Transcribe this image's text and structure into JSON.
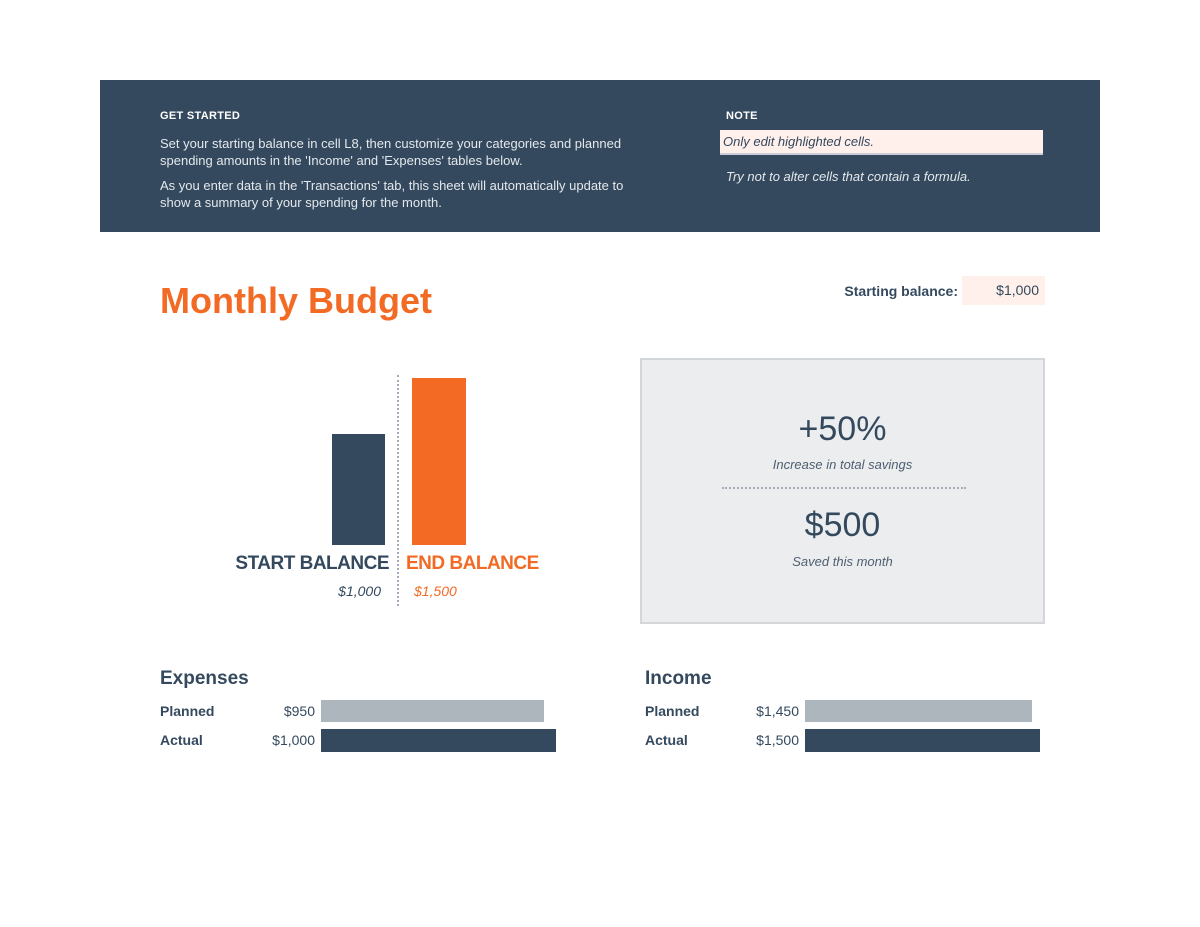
{
  "banner": {
    "get_started_heading": "GET STARTED",
    "para1": "Set your starting balance in cell L8, then customize your categories and planned spending amounts in the 'Income' and 'Expenses' tables below.",
    "para2": "As you enter data in the 'Transactions' tab, this sheet will automatically update to show a summary of your spending for the month.",
    "note_heading": "NOTE",
    "note1": "Only edit highlighted cells.",
    "note2": "Try not to alter cells that contain a formula."
  },
  "title": "Monthly Budget",
  "starting_balance": {
    "label": "Starting balance:",
    "value": "$1,000"
  },
  "balance_chart": {
    "start_label": "START BALANCE",
    "start_value": "$1,000",
    "end_label": "END BALANCE",
    "end_value": "$1,500"
  },
  "summary": {
    "percent": "+50%",
    "percent_label": "Increase in total savings",
    "saved": "$500",
    "saved_label": "Saved this month"
  },
  "expenses": {
    "title": "Expenses",
    "planned_label": "Planned",
    "planned_value": "$950",
    "actual_label": "Actual",
    "actual_value": "$1,000"
  },
  "income": {
    "title": "Income",
    "planned_label": "Planned",
    "planned_value": "$1,450",
    "actual_label": "Actual",
    "actual_value": "$1,500"
  },
  "colors": {
    "navy": "#34495e",
    "orange": "#f26a24",
    "gray": "#adb5bd",
    "highlight": "#fff0eb"
  },
  "chart_data": [
    {
      "type": "bar",
      "categories": [
        "START BALANCE",
        "END BALANCE"
      ],
      "values": [
        1000,
        1500
      ]
    },
    {
      "type": "bar",
      "title": "Expenses",
      "categories": [
        "Planned",
        "Actual"
      ],
      "values": [
        950,
        1000
      ]
    },
    {
      "type": "bar",
      "title": "Income",
      "categories": [
        "Planned",
        "Actual"
      ],
      "values": [
        1450,
        1500
      ]
    }
  ]
}
